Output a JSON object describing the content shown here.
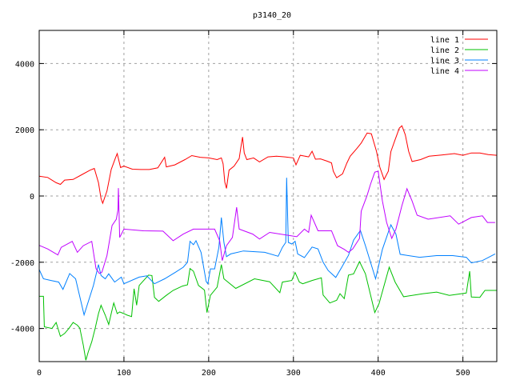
{
  "chart_data": {
    "type": "line",
    "title": "p3140_20",
    "xlabel": "",
    "ylabel": "",
    "xlim": [
      0,
      540
    ],
    "ylim": [
      -5000,
      5000
    ],
    "xticks": [
      0,
      100,
      200,
      300,
      400,
      500
    ],
    "yticks": [
      -4000,
      -2000,
      0,
      2000,
      4000
    ],
    "grid": true,
    "legend_position": "top-right",
    "series": [
      {
        "name": "line 1",
        "color": "#ff0000",
        "points": [
          [
            0,
            600
          ],
          [
            10,
            560
          ],
          [
            20,
            400
          ],
          [
            25,
            350
          ],
          [
            30,
            480
          ],
          [
            40,
            500
          ],
          [
            50,
            640
          ],
          [
            60,
            780
          ],
          [
            65,
            830
          ],
          [
            70,
            400
          ],
          [
            73,
            -80
          ],
          [
            75,
            -220
          ],
          [
            80,
            150
          ],
          [
            85,
            800
          ],
          [
            90,
            1150
          ],
          [
            92,
            1280
          ],
          [
            96,
            860
          ],
          [
            100,
            900
          ],
          [
            110,
            810
          ],
          [
            120,
            800
          ],
          [
            130,
            800
          ],
          [
            140,
            850
          ],
          [
            148,
            1170
          ],
          [
            150,
            880
          ],
          [
            160,
            940
          ],
          [
            172,
            1100
          ],
          [
            180,
            1220
          ],
          [
            190,
            1170
          ],
          [
            200,
            1150
          ],
          [
            210,
            1100
          ],
          [
            215,
            1150
          ],
          [
            217,
            970
          ],
          [
            219,
            420
          ],
          [
            221,
            230
          ],
          [
            224,
            780
          ],
          [
            230,
            900
          ],
          [
            236,
            1130
          ],
          [
            238,
            1470
          ],
          [
            240,
            1780
          ],
          [
            242,
            1300
          ],
          [
            245,
            1100
          ],
          [
            253,
            1150
          ],
          [
            260,
            1030
          ],
          [
            270,
            1180
          ],
          [
            280,
            1200
          ],
          [
            290,
            1180
          ],
          [
            300,
            1150
          ],
          [
            303,
            940
          ],
          [
            308,
            1230
          ],
          [
            318,
            1180
          ],
          [
            322,
            1350
          ],
          [
            326,
            1110
          ],
          [
            332,
            1120
          ],
          [
            340,
            1050
          ],
          [
            345,
            1000
          ],
          [
            347,
            750
          ],
          [
            351,
            550
          ],
          [
            358,
            670
          ],
          [
            363,
            990
          ],
          [
            367,
            1200
          ],
          [
            375,
            1440
          ],
          [
            380,
            1600
          ],
          [
            387,
            1900
          ],
          [
            392,
            1880
          ],
          [
            398,
            1350
          ],
          [
            402,
            870
          ],
          [
            407,
            500
          ],
          [
            412,
            750
          ],
          [
            415,
            1340
          ],
          [
            420,
            1700
          ],
          [
            425,
            2050
          ],
          [
            428,
            2120
          ],
          [
            432,
            1850
          ],
          [
            436,
            1350
          ],
          [
            440,
            1040
          ],
          [
            450,
            1100
          ],
          [
            460,
            1200
          ],
          [
            475,
            1240
          ],
          [
            490,
            1280
          ],
          [
            500,
            1230
          ],
          [
            510,
            1300
          ],
          [
            520,
            1300
          ],
          [
            530,
            1250
          ],
          [
            540,
            1230
          ]
        ]
      },
      {
        "name": "line 2",
        "color": "#00c000",
        "points": [
          [
            0,
            -3030
          ],
          [
            5,
            -3030
          ],
          [
            6,
            -3950
          ],
          [
            15,
            -4000
          ],
          [
            20,
            -3820
          ],
          [
            25,
            -4240
          ],
          [
            30,
            -4150
          ],
          [
            35,
            -4000
          ],
          [
            40,
            -3820
          ],
          [
            45,
            -3900
          ],
          [
            48,
            -3990
          ],
          [
            52,
            -4500
          ],
          [
            55,
            -4960
          ],
          [
            58,
            -4700
          ],
          [
            62,
            -4400
          ],
          [
            66,
            -4000
          ],
          [
            70,
            -3550
          ],
          [
            73,
            -3300
          ],
          [
            78,
            -3600
          ],
          [
            82,
            -3880
          ],
          [
            85,
            -3550
          ],
          [
            88,
            -3230
          ],
          [
            92,
            -3550
          ],
          [
            95,
            -3500
          ],
          [
            99,
            -3540
          ],
          [
            104,
            -3600
          ],
          [
            109,
            -3640
          ],
          [
            112,
            -2800
          ],
          [
            115,
            -3300
          ],
          [
            118,
            -2700
          ],
          [
            129,
            -2390
          ],
          [
            133,
            -2400
          ],
          [
            136,
            -3060
          ],
          [
            141,
            -3180
          ],
          [
            150,
            -3000
          ],
          [
            158,
            -2850
          ],
          [
            169,
            -2720
          ],
          [
            175,
            -2680
          ],
          [
            178,
            -2190
          ],
          [
            182,
            -2270
          ],
          [
            188,
            -2700
          ],
          [
            195,
            -2840
          ],
          [
            198,
            -3520
          ],
          [
            202,
            -3000
          ],
          [
            210,
            -2750
          ],
          [
            215,
            -2070
          ],
          [
            218,
            -2500
          ],
          [
            232,
            -2790
          ],
          [
            254,
            -2500
          ],
          [
            272,
            -2590
          ],
          [
            284,
            -2920
          ],
          [
            287,
            -2600
          ],
          [
            298,
            -2550
          ],
          [
            302,
            -2310
          ],
          [
            307,
            -2600
          ],
          [
            311,
            -2650
          ],
          [
            322,
            -2550
          ],
          [
            333,
            -2470
          ],
          [
            335,
            -2990
          ],
          [
            343,
            -3230
          ],
          [
            351,
            -3150
          ],
          [
            355,
            -2950
          ],
          [
            360,
            -3100
          ],
          [
            365,
            -2390
          ],
          [
            371,
            -2350
          ],
          [
            378,
            -1980
          ],
          [
            385,
            -2350
          ],
          [
            396,
            -3520
          ],
          [
            401,
            -3250
          ],
          [
            413,
            -2150
          ],
          [
            420,
            -2600
          ],
          [
            430,
            -3040
          ],
          [
            453,
            -2950
          ],
          [
            469,
            -2900
          ],
          [
            484,
            -3000
          ],
          [
            504,
            -2930
          ],
          [
            508,
            -2270
          ],
          [
            510,
            -3050
          ],
          [
            520,
            -3060
          ],
          [
            526,
            -2850
          ],
          [
            540,
            -2850
          ]
        ]
      },
      {
        "name": "line 3",
        "color": "#0080ff",
        "points": [
          [
            0,
            -2220
          ],
          [
            5,
            -2500
          ],
          [
            14,
            -2550
          ],
          [
            23,
            -2600
          ],
          [
            28,
            -2820
          ],
          [
            36,
            -2340
          ],
          [
            43,
            -2500
          ],
          [
            53,
            -3590
          ],
          [
            64,
            -2700
          ],
          [
            70,
            -2070
          ],
          [
            73,
            -2400
          ],
          [
            78,
            -2500
          ],
          [
            82,
            -2350
          ],
          [
            89,
            -2600
          ],
          [
            97,
            -2450
          ],
          [
            100,
            -2650
          ],
          [
            118,
            -2450
          ],
          [
            127,
            -2410
          ],
          [
            136,
            -2650
          ],
          [
            148,
            -2500
          ],
          [
            161,
            -2300
          ],
          [
            170,
            -2150
          ],
          [
            175,
            -2000
          ],
          [
            178,
            -1370
          ],
          [
            182,
            -1470
          ],
          [
            185,
            -1350
          ],
          [
            191,
            -1700
          ],
          [
            197,
            -2580
          ],
          [
            199,
            -2650
          ],
          [
            202,
            -2200
          ],
          [
            207,
            -2200
          ],
          [
            212,
            -1550
          ],
          [
            215,
            -650
          ],
          [
            218,
            -1400
          ],
          [
            221,
            -1830
          ],
          [
            226,
            -1750
          ],
          [
            241,
            -1660
          ],
          [
            266,
            -1700
          ],
          [
            282,
            -1820
          ],
          [
            287,
            -1550
          ],
          [
            291,
            -1400
          ],
          [
            292,
            550
          ],
          [
            294,
            -1400
          ],
          [
            298,
            -1450
          ],
          [
            302,
            -1370
          ],
          [
            305,
            -1750
          ],
          [
            313,
            -1860
          ],
          [
            322,
            -1540
          ],
          [
            329,
            -1600
          ],
          [
            335,
            -2000
          ],
          [
            341,
            -2250
          ],
          [
            350,
            -2460
          ],
          [
            357,
            -2150
          ],
          [
            365,
            -1790
          ],
          [
            371,
            -1330
          ],
          [
            379,
            -1040
          ],
          [
            385,
            -1500
          ],
          [
            397,
            -2500
          ],
          [
            405,
            -1610
          ],
          [
            415,
            -870
          ],
          [
            421,
            -1150
          ],
          [
            426,
            -1760
          ],
          [
            449,
            -1850
          ],
          [
            469,
            -1800
          ],
          [
            488,
            -1800
          ],
          [
            504,
            -1850
          ],
          [
            510,
            -2020
          ],
          [
            523,
            -1950
          ],
          [
            538,
            -1750
          ]
        ]
      },
      {
        "name": "line 4",
        "color": "#c000ff",
        "points": [
          [
            0,
            -1490
          ],
          [
            10,
            -1600
          ],
          [
            22,
            -1780
          ],
          [
            26,
            -1550
          ],
          [
            39,
            -1370
          ],
          [
            45,
            -1700
          ],
          [
            52,
            -1500
          ],
          [
            62,
            -1370
          ],
          [
            67,
            -2190
          ],
          [
            71,
            -2340
          ],
          [
            74,
            -2300
          ],
          [
            80,
            -1800
          ],
          [
            86,
            -890
          ],
          [
            91,
            -700
          ],
          [
            93,
            -410
          ],
          [
            93.5,
            240
          ],
          [
            95,
            -1250
          ],
          [
            100,
            -1000
          ],
          [
            123,
            -1050
          ],
          [
            146,
            -1060
          ],
          [
            158,
            -1350
          ],
          [
            170,
            -1150
          ],
          [
            182,
            -1000
          ],
          [
            197,
            -1000
          ],
          [
            207,
            -1000
          ],
          [
            213,
            -1350
          ],
          [
            216,
            -1950
          ],
          [
            221,
            -1500
          ],
          [
            228,
            -1250
          ],
          [
            233,
            -340
          ],
          [
            236,
            -1000
          ],
          [
            252,
            -1150
          ],
          [
            260,
            -1300
          ],
          [
            272,
            -1100
          ],
          [
            304,
            -1230
          ],
          [
            313,
            -1000
          ],
          [
            318,
            -1100
          ],
          [
            321,
            -580
          ],
          [
            329,
            -1050
          ],
          [
            345,
            -1050
          ],
          [
            352,
            -1500
          ],
          [
            360,
            -1610
          ],
          [
            365,
            -1700
          ],
          [
            370,
            -1600
          ],
          [
            378,
            -1280
          ],
          [
            380,
            -460
          ],
          [
            387,
            20
          ],
          [
            391,
            360
          ],
          [
            396,
            720
          ],
          [
            400,
            750
          ],
          [
            405,
            -150
          ],
          [
            410,
            -800
          ],
          [
            416,
            -1280
          ],
          [
            421,
            -1000
          ],
          [
            428,
            -290
          ],
          [
            434,
            220
          ],
          [
            440,
            -150
          ],
          [
            446,
            -580
          ],
          [
            459,
            -700
          ],
          [
            485,
            -600
          ],
          [
            495,
            -850
          ],
          [
            510,
            -650
          ],
          [
            523,
            -600
          ],
          [
            529,
            -800
          ],
          [
            538,
            -800
          ]
        ]
      }
    ]
  }
}
